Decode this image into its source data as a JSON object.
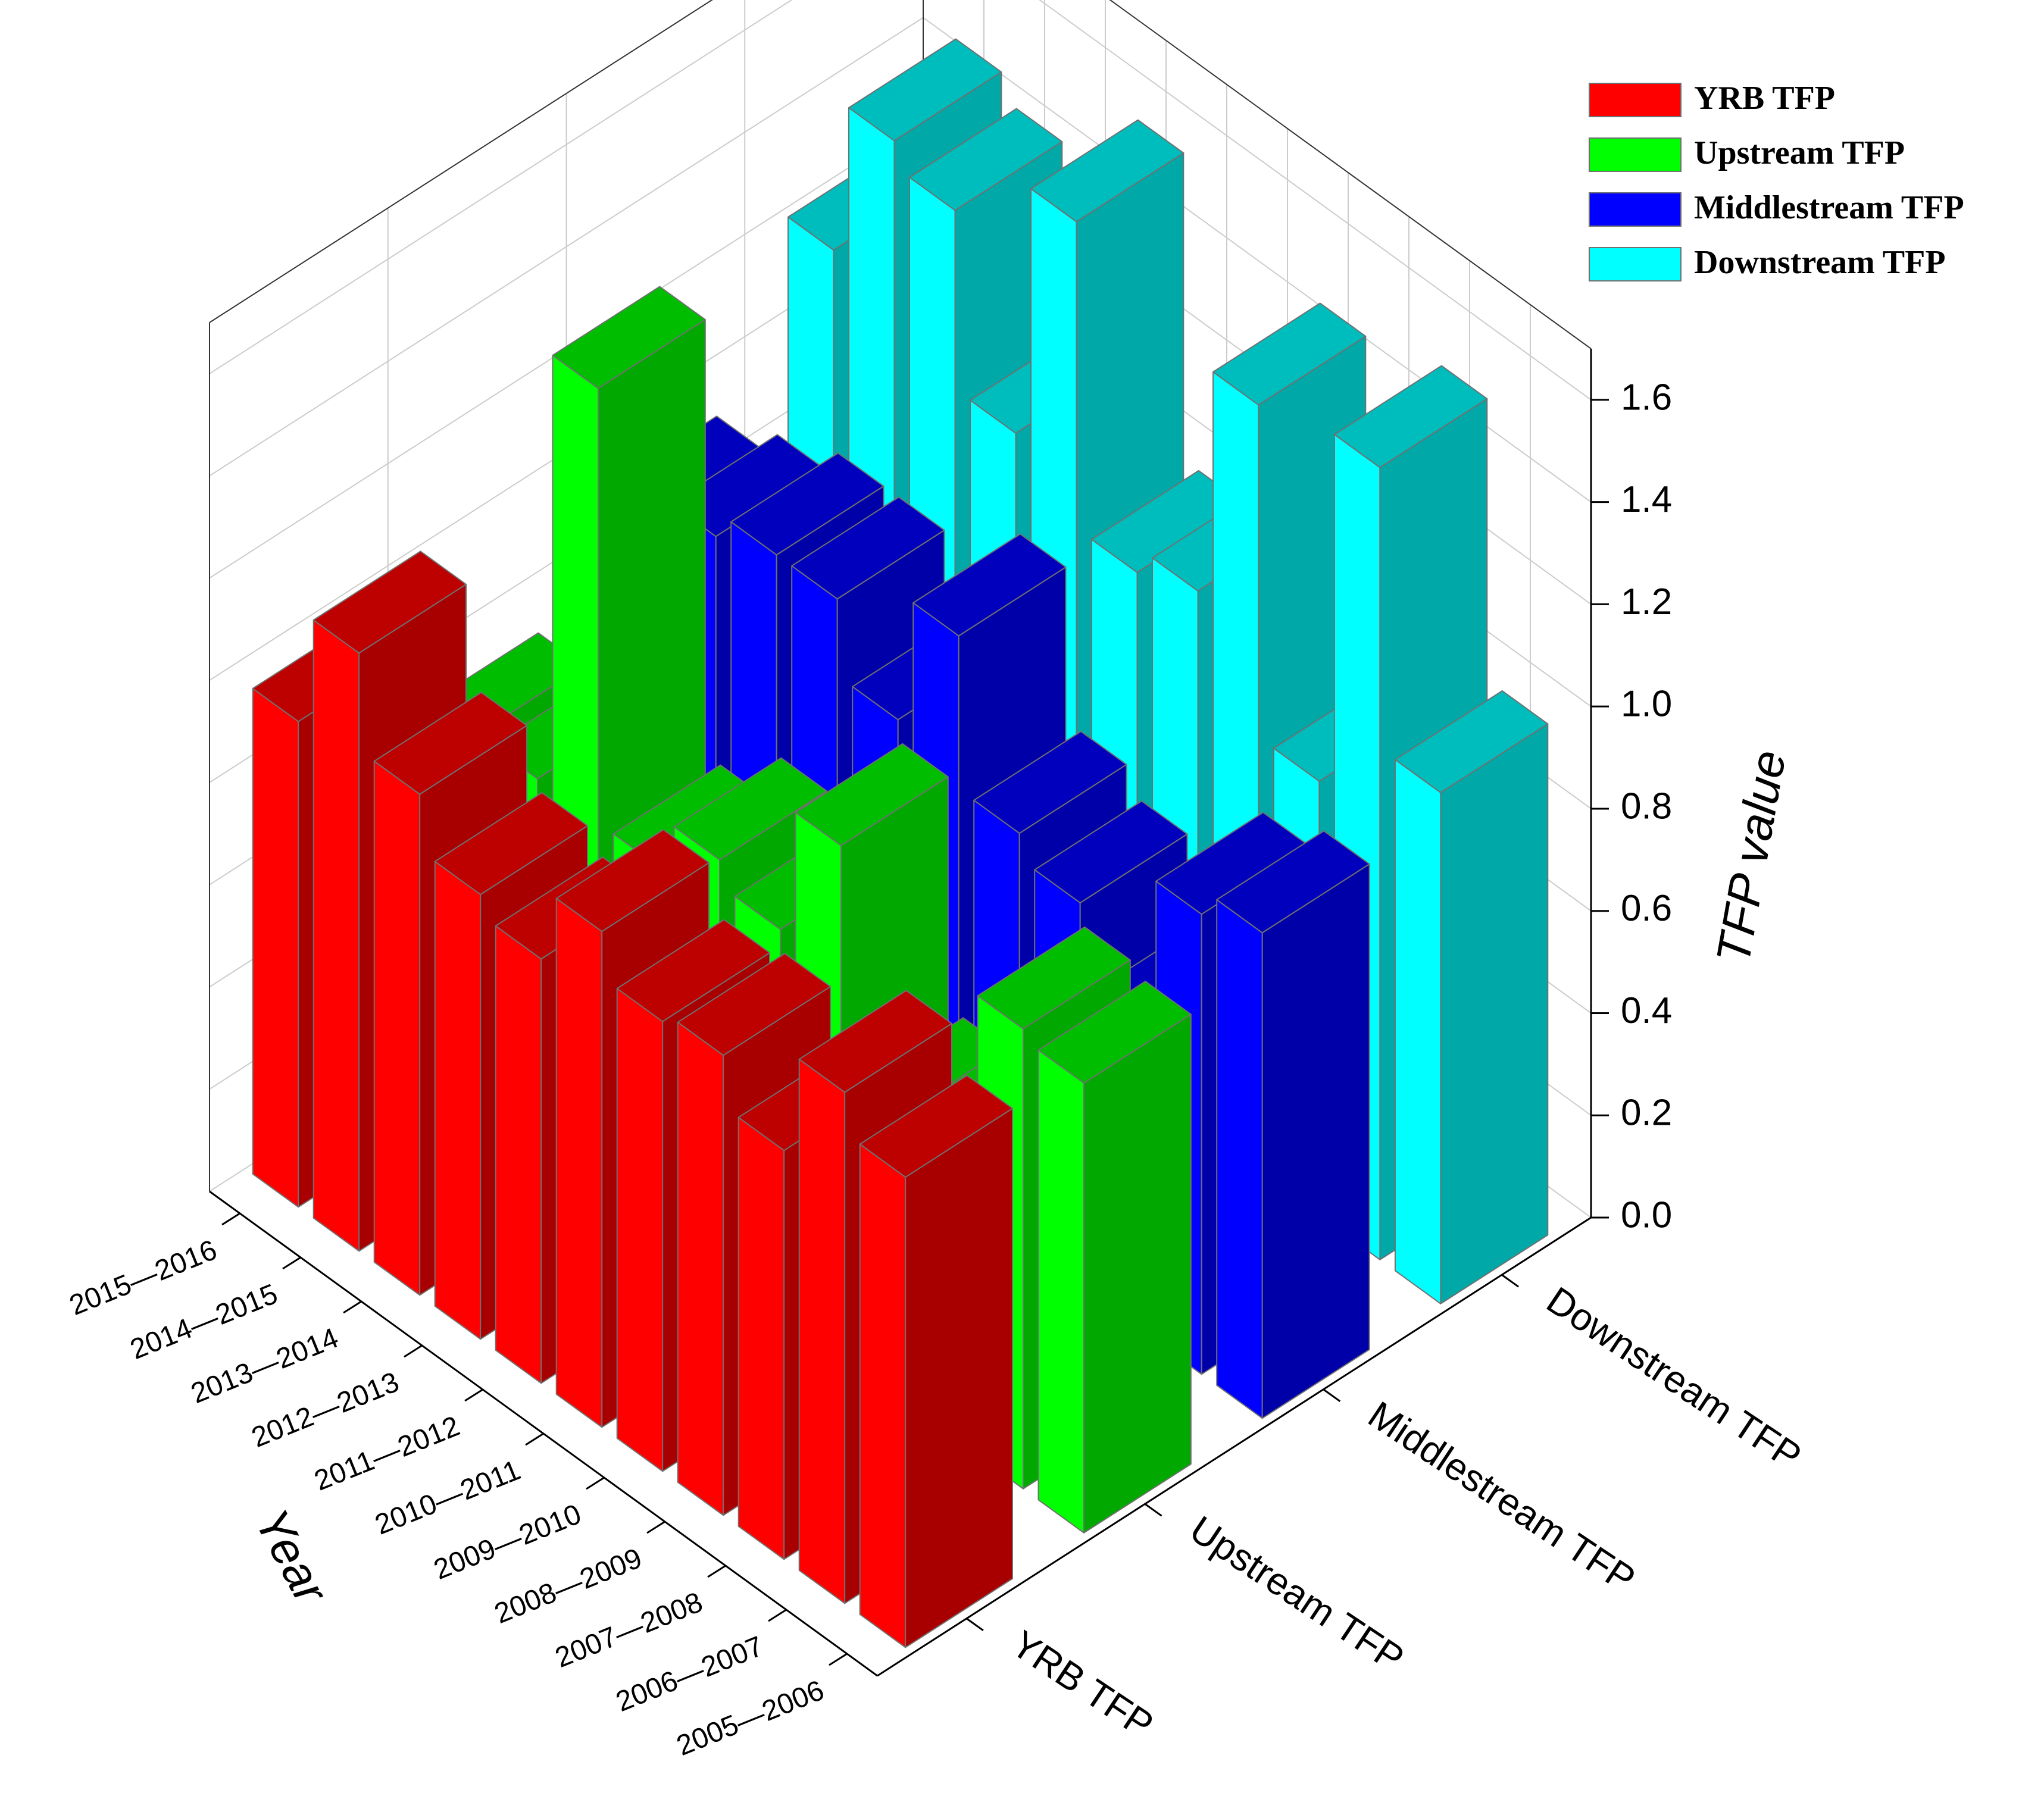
{
  "chart_data": {
    "type": "bar3d",
    "x_label": "Year",
    "y_label": "TFP value",
    "categories": [
      "2005—2006",
      "2006—2007",
      "2007—2008",
      "2008—2009",
      "2009—2010",
      "2010—2011",
      "2011—2012",
      "2012—2013",
      "2013—2014",
      "2014—2015",
      "2015—2016"
    ],
    "series": [
      {
        "name": "YRB TFP",
        "color": "#ff0000",
        "values": [
          0.92,
          1.0,
          0.8,
          0.9,
          0.88,
          0.97,
          0.83,
          0.87,
          0.98,
          1.17,
          0.95
        ]
      },
      {
        "name": "Upstream TFP",
        "color": "#00ff00",
        "values": [
          0.88,
          0.9,
          0.6,
          0.55,
          1.0,
          0.75,
          0.8,
          0.7,
          1.55,
          0.7,
          0.7
        ]
      },
      {
        "name": "Middlestream TFP",
        "color": "#0000ff",
        "values": [
          0.95,
          0.9,
          0.6,
          0.75,
          0.8,
          1.1,
          0.85,
          1.0,
          1.0,
          0.95,
          0.9
        ]
      },
      {
        "name": "Downstream TFP",
        "color": "#00ffff",
        "values": [
          1.0,
          1.55,
          0.85,
          1.5,
          1.05,
          1.0,
          1.6,
          1.1,
          1.45,
          1.5,
          1.2
        ]
      }
    ],
    "ylim": [
      0,
      1.7
    ],
    "yticks": [
      {
        "value": 0,
        "label": "0.0"
      },
      {
        "value": 0.2,
        "label": "0.2"
      },
      {
        "value": 0.4,
        "label": "0.4"
      },
      {
        "value": 0.6,
        "label": "0.6"
      },
      {
        "value": 0.8,
        "label": "0.8"
      },
      {
        "value": 1.0,
        "label": "1.0"
      },
      {
        "value": 1.2,
        "label": "1.2"
      },
      {
        "value": 1.4,
        "label": "1.4"
      },
      {
        "value": 1.6,
        "label": "1.6"
      }
    ],
    "grid": true,
    "legend": "top-right"
  }
}
